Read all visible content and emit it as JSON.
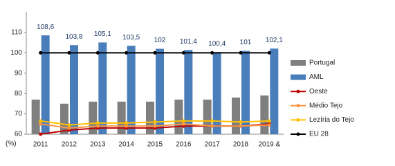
{
  "chart_data": {
    "type": "bar-line",
    "y_label": "(%)",
    "categories": [
      "2011",
      "2012",
      "2013",
      "2014",
      "2015",
      "2016",
      "2017",
      "2018",
      "2019 &"
    ],
    "ylim": [
      60,
      110
    ],
    "yticks": [
      60,
      70,
      80,
      90,
      100,
      110
    ],
    "legend": "right",
    "series": [
      {
        "name": "Portugal",
        "kind": "bar",
        "color": "#7f7f7f",
        "values": [
          77,
          75,
          76,
          76,
          76,
          77,
          77,
          78,
          79
        ]
      },
      {
        "name": "AML",
        "kind": "bar",
        "color": "#4a7ebb",
        "values": [
          108.6,
          103.8,
          105.1,
          103.5,
          102,
          101.4,
          100.4,
          101,
          102.1
        ],
        "value_labels": [
          "108,6",
          "103,8",
          "105,1",
          "103,5",
          "102",
          "101,4",
          "100,4",
          "101",
          "102,1"
        ]
      },
      {
        "name": "Oeste",
        "kind": "line",
        "color": "#c00000",
        "values": [
          60,
          62,
          63,
          63,
          63,
          64,
          64,
          64,
          65
        ]
      },
      {
        "name": "Médio Tejo",
        "kind": "line",
        "color": "#f79646",
        "values": [
          65,
          63,
          64,
          64,
          64,
          65,
          64,
          64,
          64.5
        ]
      },
      {
        "name": "Lezíria do Tejo",
        "kind": "line",
        "color": "#ffc000",
        "values": [
          66.5,
          64.5,
          65.5,
          65.5,
          66,
          66.5,
          66.5,
          66,
          66.5
        ]
      },
      {
        "name": "EU 28",
        "kind": "line",
        "color": "#000000",
        "values": [
          100,
          100,
          100,
          100,
          100,
          100,
          100,
          100,
          100
        ]
      }
    ]
  }
}
